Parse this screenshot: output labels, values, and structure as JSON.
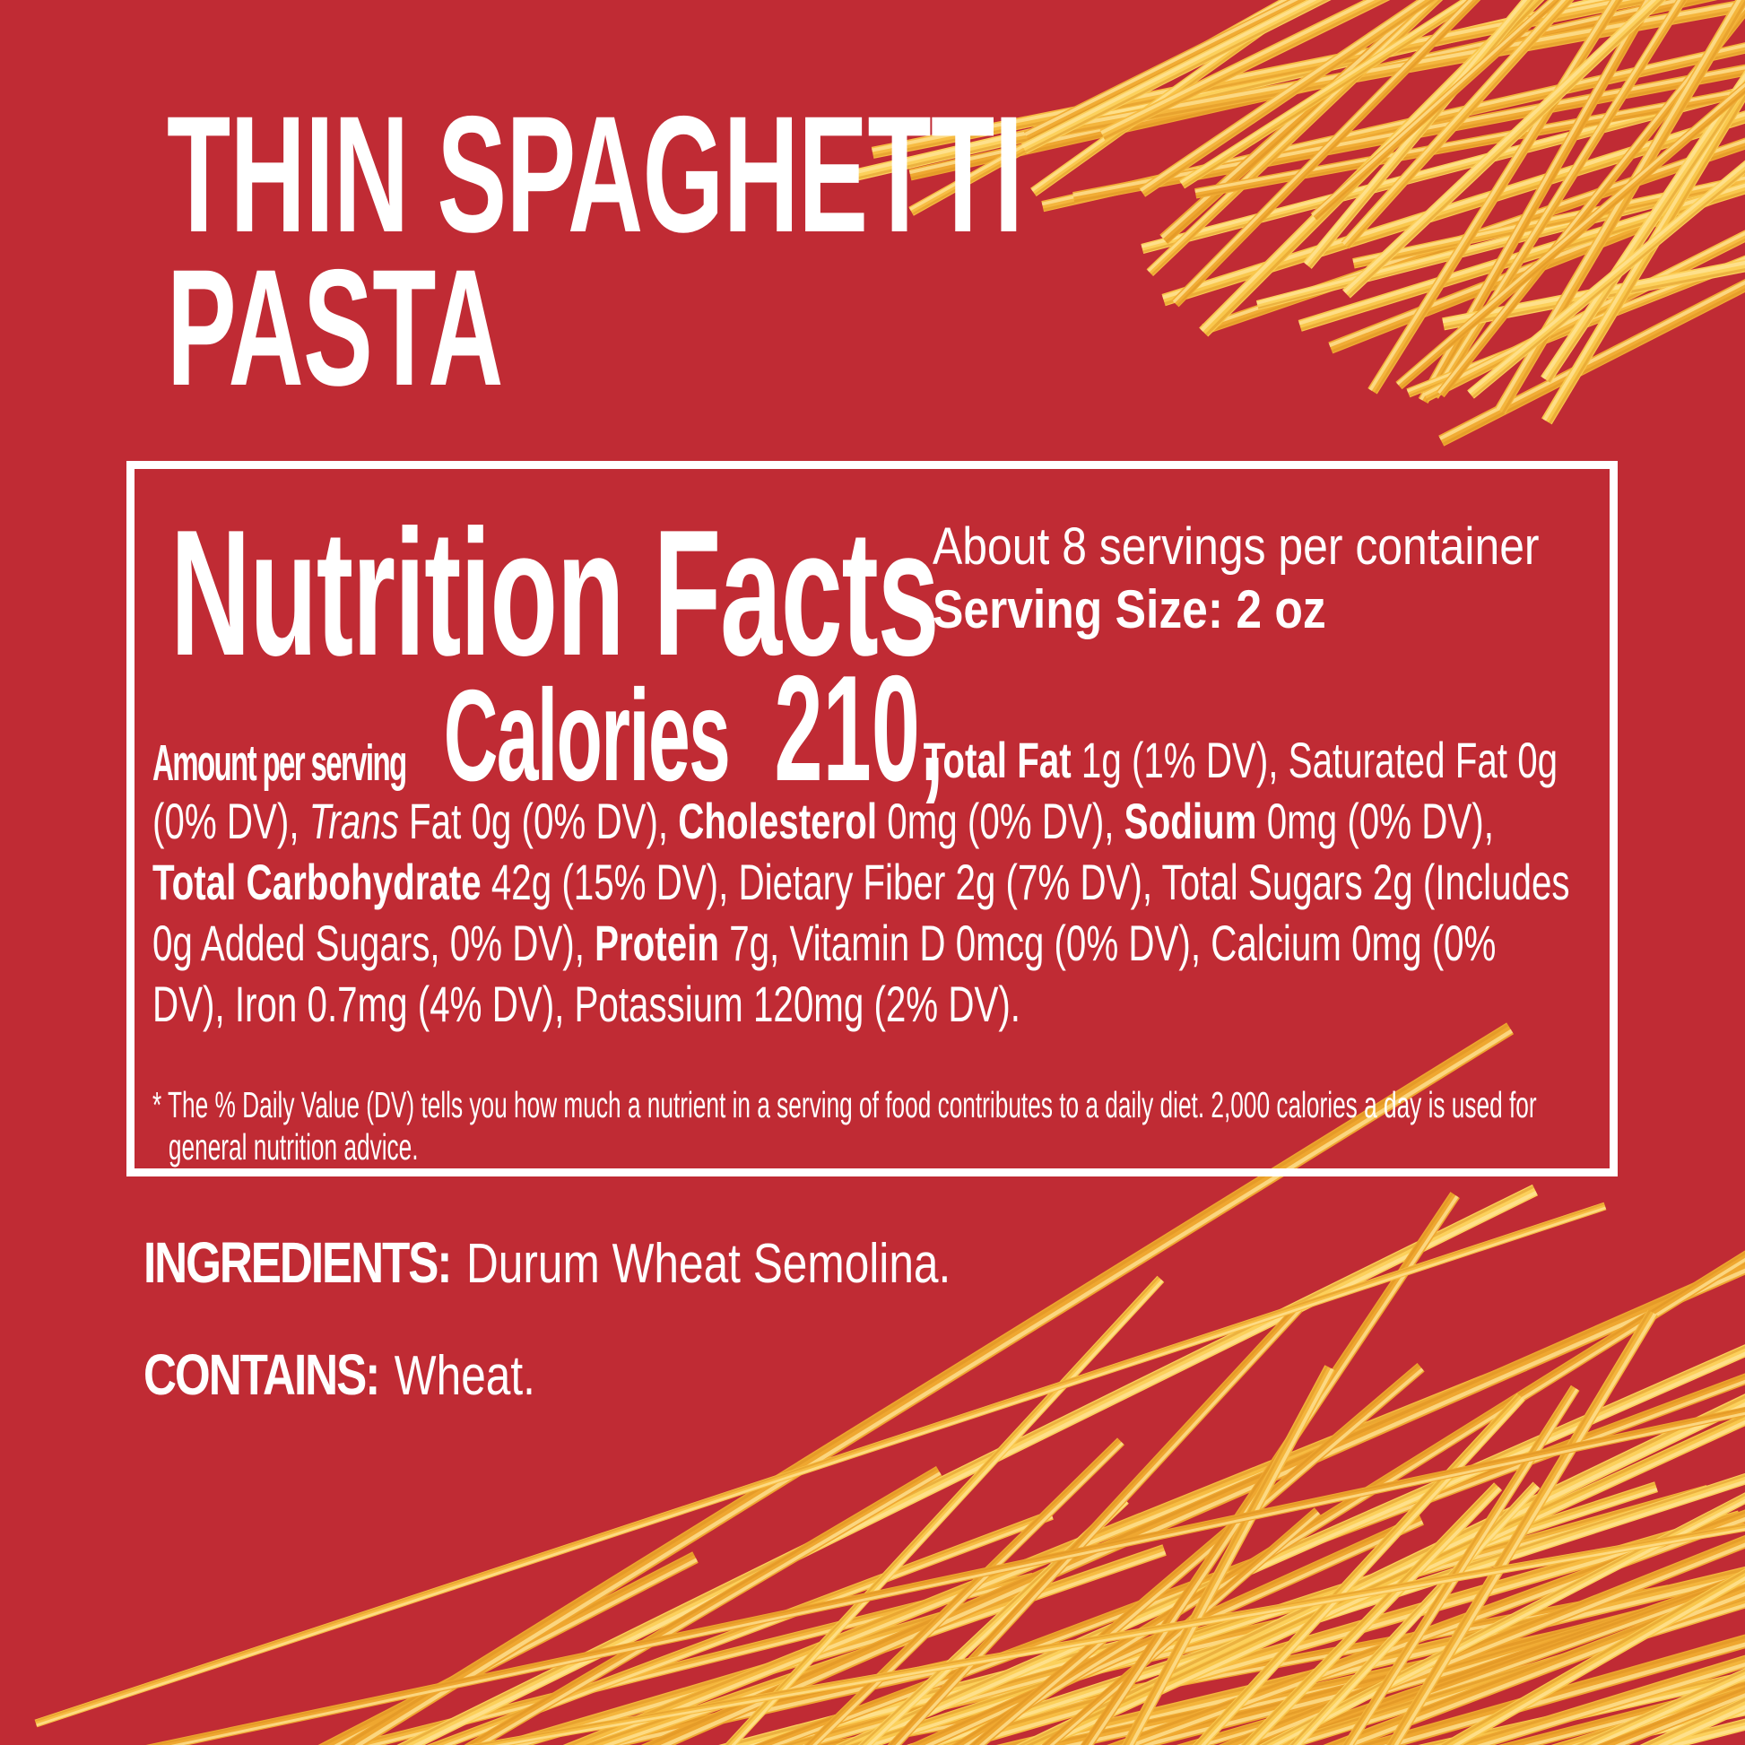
{
  "page": {
    "background": "#C02B34",
    "text_color": "#FFFFFF"
  },
  "title": {
    "line1": "THIN SPAGHETTI",
    "line2": "PASTA"
  },
  "nutrition_box": {
    "heading": "Nutrition Facts",
    "servings_per_container": "About 8 servings per container",
    "serving_size": "Serving Size: 2 oz",
    "amount_label": "Amount per serving",
    "calories_word": "Calories",
    "calories_value": "210,",
    "paragraph_segments": [
      {
        "s": "b",
        "t": "Total Fat "
      },
      {
        "s": "r",
        "t": "1g (1% DV), Saturated Fat 0g (0% DV), "
      },
      {
        "s": "i",
        "t": "Trans"
      },
      {
        "s": "r",
        "t": " Fat 0g (0% DV), "
      },
      {
        "s": "b",
        "t": "Cholesterol "
      },
      {
        "s": "r",
        "t": "0mg (0% DV), "
      },
      {
        "s": "b",
        "t": "Sodium "
      },
      {
        "s": "r",
        "t": "0mg (0% DV), "
      },
      {
        "s": "b",
        "t": "Total Carbohydrate "
      },
      {
        "s": "r",
        "t": "42g (15% DV), Dietary Fiber 2g (7% DV), Total Sugars 2g (Includes 0g Added Sugars, 0% DV), "
      },
      {
        "s": "b",
        "t": "Protein "
      },
      {
        "s": "r",
        "t": "7g, Vitamin D 0mcg (0% DV), Calcium 0mg (0% DV), Iron 0.7mg (4% DV), Potassium 120mg (2% DV)."
      }
    ],
    "footnote": "* The % Daily Value (DV) tells you how much a nutrient in a serving of food contributes to a daily diet. 2,000 calories a day is used for general nutrition advice."
  },
  "ingredients": {
    "label": "INGREDIENTS:",
    "value": "Durum Wheat Semolina."
  },
  "contains": {
    "label": "CONTAINS:",
    "value": "Wheat."
  },
  "decor": {
    "spaghetti_colors": [
      "#F9C74C",
      "#F4B53C",
      "#EFA730",
      "#F7BC42",
      "#FCD05B",
      "#F1AC34"
    ],
    "spaghetti_highlight": "#FFE59B",
    "spaghetti_shadow": "#D98F1E"
  }
}
